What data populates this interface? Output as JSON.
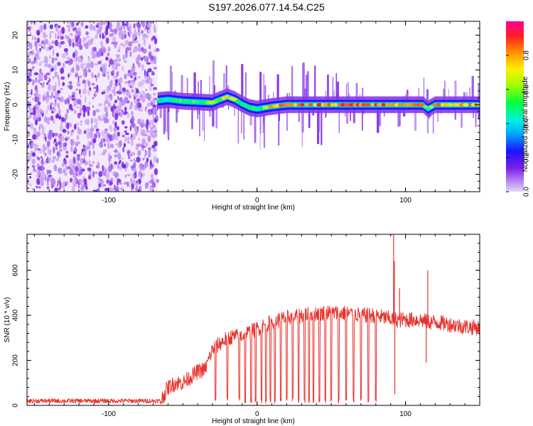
{
  "page_title": "S197.2026.077.14.54.C25",
  "chart_data": [
    {
      "type": "heatmap",
      "title": "S197.2026.077.14.54.C25",
      "xlabel": "Height of straight line (km)",
      "ylabel": "Frequency (Hz)",
      "xlim": [
        -155,
        150
      ],
      "ylim": [
        -25,
        24
      ],
      "x_ticks": [
        -100,
        0,
        100
      ],
      "x_tick_labels": [
        "-100",
        "0",
        "100"
      ],
      "y_ticks": [
        -20,
        -10,
        0,
        10,
        20
      ],
      "y_tick_labels": [
        "-20",
        "-10",
        "0",
        "10",
        "20"
      ],
      "noise_region_x": [
        -155,
        -67
      ],
      "ridge": {
        "x": [
          -67,
          -60,
          -50,
          -40,
          -30,
          -25,
          -20,
          -15,
          -10,
          -5,
          0,
          10,
          20,
          40,
          60,
          80,
          95,
          105,
          112,
          115,
          120,
          150
        ],
        "frequency": [
          1.2,
          1.5,
          1.0,
          0.8,
          0.6,
          1.5,
          2.3,
          1.5,
          0.2,
          -0.8,
          -1.2,
          -0.5,
          0.0,
          0.0,
          0.0,
          0.0,
          0.0,
          0.0,
          0.0,
          -1.2,
          0.0,
          0.0
        ],
        "amplitude": [
          0.5,
          0.55,
          0.55,
          0.6,
          0.7,
          0.7,
          0.72,
          0.7,
          0.6,
          0.55,
          0.55,
          0.8,
          0.85,
          0.9,
          0.92,
          0.92,
          0.92,
          0.9,
          0.88,
          0.5,
          0.85,
          0.85
        ]
      },
      "colorbar": {
        "label": "Normalized spectral amplitude",
        "range": [
          0,
          1
        ],
        "ticks": [
          0.0,
          0.2,
          0.4,
          0.6,
          0.8
        ],
        "tick_labels": [
          "0.0",
          "0.2",
          "0.4",
          "0.6",
          "0.8"
        ]
      }
    },
    {
      "type": "line",
      "xlabel": "Height of straight line (km)",
      "ylabel": "SNR (10 * v/v)",
      "xlim": [
        -155,
        150
      ],
      "ylim": [
        0,
        760
      ],
      "x_ticks": [
        -100,
        0,
        100
      ],
      "x_tick_labels": [
        "-100",
        "0",
        "100"
      ],
      "y_ticks": [
        0,
        200,
        400,
        600
      ],
      "y_tick_labels": [
        "0",
        "200",
        "400",
        "600"
      ],
      "series": [
        {
          "name": "SNR",
          "color": "#e8322c",
          "x": [
            -155,
            -100,
            -65,
            -60,
            -55,
            -50,
            -40,
            -35,
            -30,
            -20,
            -10,
            0,
            10,
            20,
            30,
            40,
            50,
            60,
            70,
            80,
            85,
            90,
            93,
            95,
            100,
            110,
            115,
            120,
            130,
            140,
            150
          ],
          "value": [
            20,
            20,
            20,
            80,
            100,
            100,
            150,
            160,
            250,
            300,
            310,
            340,
            370,
            390,
            400,
            410,
            410,
            410,
            400,
            400,
            390,
            385,
            380,
            380,
            380,
            380,
            370,
            370,
            360,
            350,
            345
          ],
          "spikes": [
            {
              "x": 92,
              "value": 760
            },
            {
              "x": 92.5,
              "value": 640
            },
            {
              "x": 92.8,
              "value": 50
            },
            {
              "x": 96,
              "value": 520
            },
            {
              "x": 115,
              "value": 600
            },
            {
              "x": 114,
              "value": 190
            }
          ],
          "dropouts_x": [
            -28,
            -20,
            -12,
            -8,
            -4,
            -1,
            3,
            6,
            9,
            12,
            16,
            20,
            24,
            28,
            32,
            35,
            38,
            42,
            46,
            50,
            55,
            60,
            65,
            70,
            75,
            80
          ]
        }
      ]
    }
  ],
  "colors": {
    "line": "#e8322c",
    "noise": "#8a2be2",
    "background": "#ffffff"
  }
}
